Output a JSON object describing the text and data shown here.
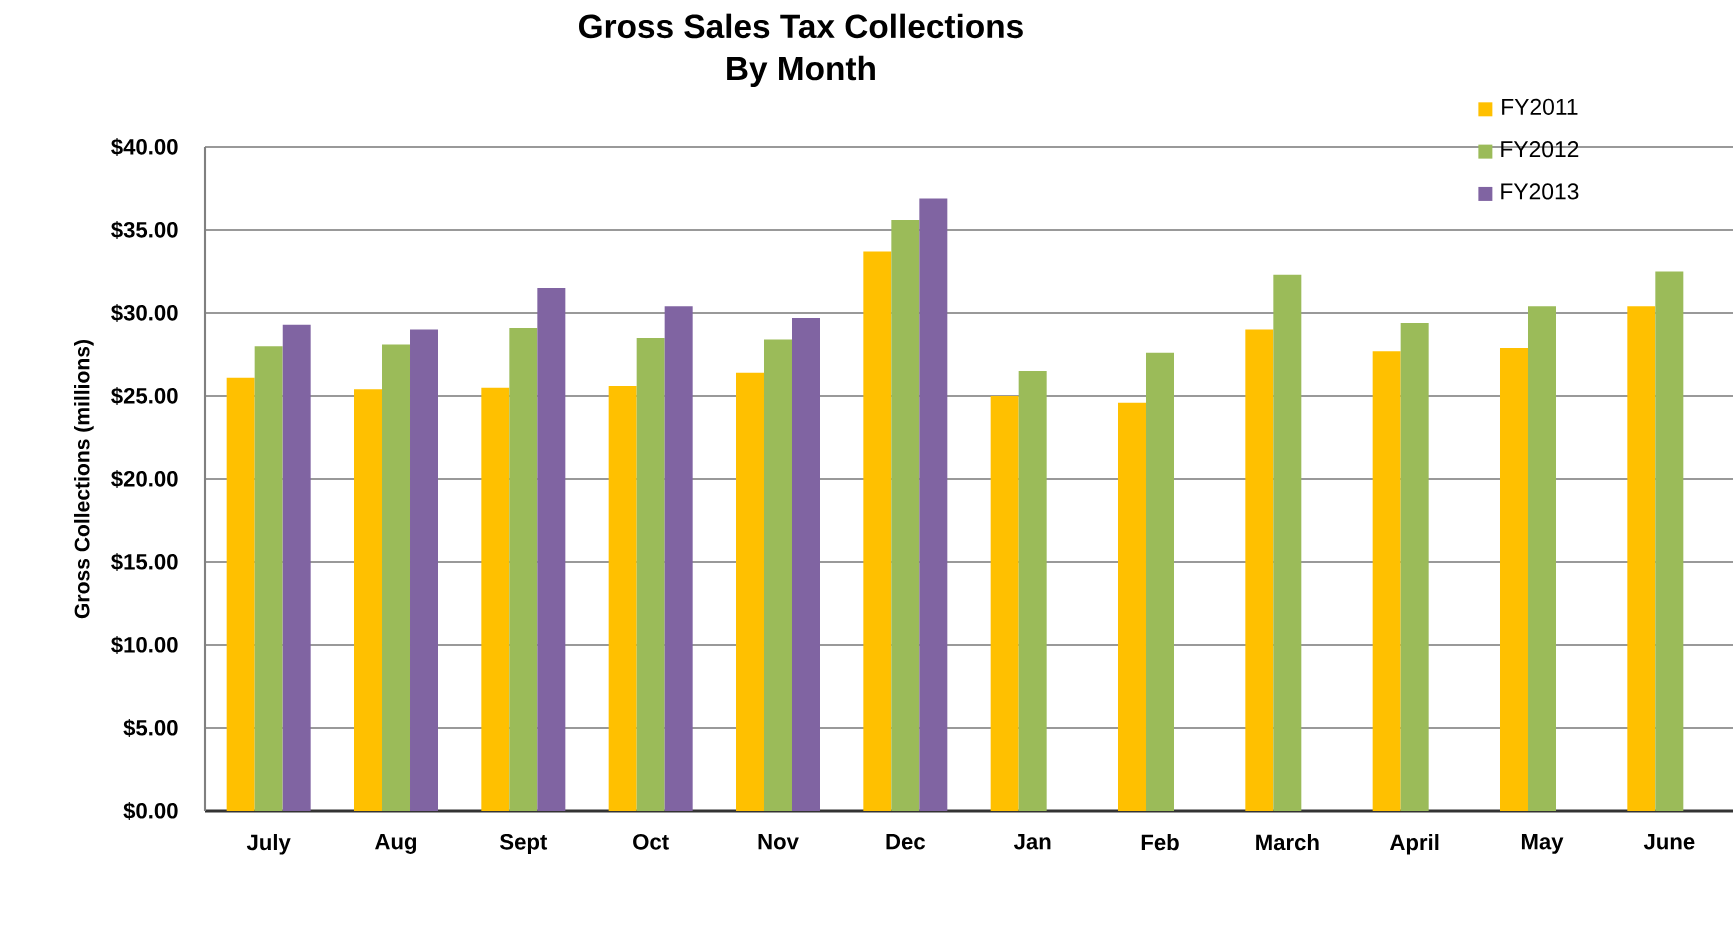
{
  "chart_data": {
    "type": "bar",
    "title": "Gross Sales Tax Collections",
    "subtitle": "By Month",
    "ylabel": "Gross Collections (millions)",
    "categories": [
      "July",
      "Aug",
      "Sept",
      "Oct",
      "Nov",
      "Dec",
      "Jan",
      "Feb",
      "March",
      "April",
      "May",
      "June"
    ],
    "series": [
      {
        "name": "FY2011",
        "color": "#ffc000",
        "values": [
          26.1,
          25.4,
          25.5,
          25.6,
          26.4,
          33.7,
          25.0,
          24.6,
          29.0,
          27.7,
          27.9,
          30.4
        ]
      },
      {
        "name": "FY2012",
        "color": "#9bbb59",
        "values": [
          28.0,
          28.1,
          29.1,
          28.5,
          28.4,
          35.6,
          26.5,
          27.6,
          32.3,
          29.4,
          30.4,
          32.5
        ]
      },
      {
        "name": "FY2013",
        "color": "#8064a2",
        "values": [
          29.3,
          29.0,
          31.5,
          30.4,
          29.7,
          36.9,
          null,
          null,
          null,
          null,
          null,
          null
        ]
      }
    ],
    "ylim": [
      0,
      40
    ],
    "yticks": [
      {
        "value": 0,
        "label": "$0.00"
      },
      {
        "value": 5,
        "label": "$5.00"
      },
      {
        "value": 10,
        "label": "$10.00"
      },
      {
        "value": 15,
        "label": "$15.00"
      },
      {
        "value": 20,
        "label": "$20.00"
      },
      {
        "value": 25,
        "label": "$25.00"
      },
      {
        "value": 30,
        "label": "$30.00"
      },
      {
        "value": 35,
        "label": "$35.00"
      },
      {
        "value": 40,
        "label": "$40.00"
      }
    ],
    "grid": "y",
    "legend": "top right"
  }
}
